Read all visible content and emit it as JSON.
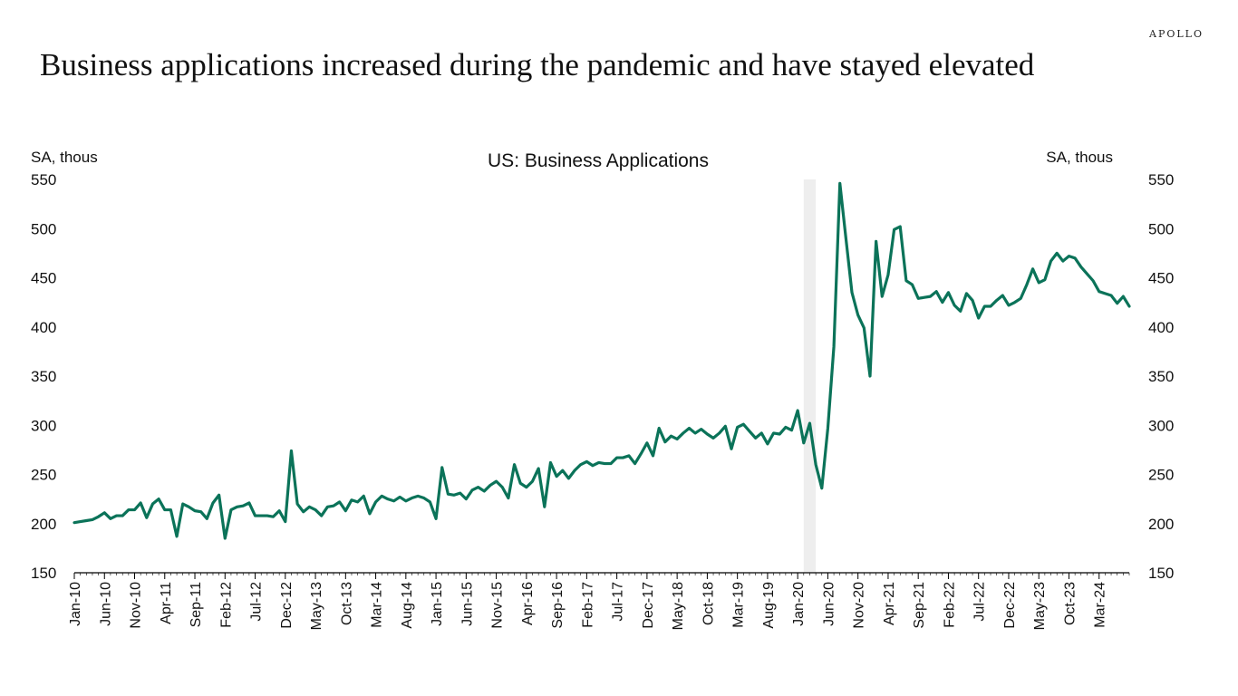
{
  "header": {
    "brand": "APOLLO",
    "title": "Business applications increased during the pandemic and have stayed elevated"
  },
  "chart_data": {
    "type": "line",
    "title": "US: Business Applications",
    "ylabel_left": "SA, thous",
    "ylabel_right": "SA, thous",
    "ylim": [
      150,
      550
    ],
    "yticks": [
      150,
      200,
      250,
      300,
      350,
      400,
      450,
      500,
      550
    ],
    "xlabels": [
      "Jan-10",
      "Jun-10",
      "Nov-10",
      "Apr-11",
      "Sep-11",
      "Feb-12",
      "Jul-12",
      "Dec-12",
      "May-13",
      "Oct-13",
      "Mar-14",
      "Aug-14",
      "Jan-15",
      "Jun-15",
      "Nov-15",
      "Apr-16",
      "Sep-16",
      "Feb-17",
      "Jul-17",
      "Dec-17",
      "May-18",
      "Oct-18",
      "Mar-19",
      "Aug-19",
      "Jan-20",
      "Jun-20",
      "Nov-20",
      "Apr-21",
      "Sep-21",
      "Feb-22",
      "Jul-22",
      "Dec-22",
      "May-23",
      "Oct-23",
      "Mar-24"
    ],
    "x_start": "Jan-10",
    "x_end": "Sep-24",
    "frequency": "monthly",
    "recession_shading": {
      "start": "Feb-20",
      "end": "Apr-20",
      "color": "#eeeeee"
    },
    "series": [
      {
        "name": "US: Business Applications",
        "color": "#0b7359",
        "values": [
          201,
          202,
          203,
          204,
          207,
          211,
          205,
          208,
          208,
          214,
          214,
          221,
          206,
          220,
          225,
          214,
          214,
          187,
          220,
          217,
          213,
          212,
          205,
          221,
          229,
          185,
          214,
          217,
          218,
          221,
          208,
          208,
          208,
          207,
          213,
          202,
          274,
          220,
          212,
          217,
          214,
          208,
          217,
          218,
          222,
          213,
          224,
          222,
          228,
          210,
          222,
          228,
          225,
          223,
          227,
          223,
          226,
          228,
          226,
          222,
          205,
          257,
          230,
          229,
          231,
          225,
          234,
          237,
          233,
          239,
          243,
          237,
          226,
          260,
          241,
          237,
          243,
          256,
          217,
          262,
          248,
          254,
          246,
          254,
          260,
          263,
          259,
          262,
          261,
          261,
          267,
          267,
          269,
          261,
          271,
          282,
          269,
          297,
          283,
          289,
          286,
          292,
          297,
          292,
          296,
          291,
          287,
          292,
          299,
          276,
          298,
          301,
          294,
          287,
          292,
          281,
          292,
          291,
          298,
          295,
          315,
          282,
          302,
          260,
          236,
          297,
          380,
          546,
          490,
          435,
          412,
          399,
          350,
          487,
          431,
          453,
          499,
          502,
          447,
          443,
          429,
          430,
          431,
          436,
          425,
          435,
          422,
          416,
          434,
          427,
          409,
          421,
          421,
          427,
          432,
          422,
          425,
          429,
          443,
          459,
          445,
          448,
          467,
          475,
          467,
          472,
          470,
          461,
          454,
          447,
          436,
          434,
          432,
          424,
          431,
          421
        ]
      }
    ]
  }
}
